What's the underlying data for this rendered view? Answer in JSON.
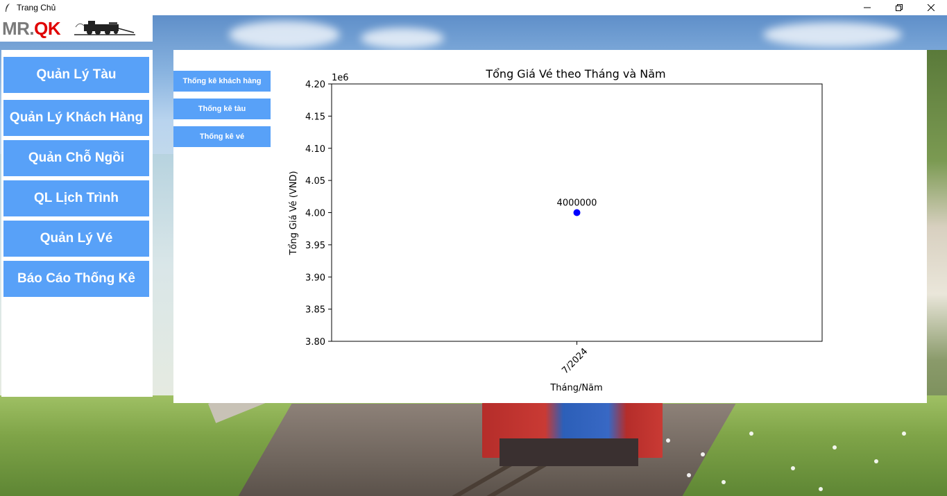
{
  "window": {
    "title": "Trang Chủ",
    "controls": [
      "minimize-icon",
      "restore-icon",
      "close-icon"
    ]
  },
  "logo": {
    "mr": "MR.",
    "qk": "QK",
    "image": "train-logo"
  },
  "sidebar": {
    "items": [
      {
        "label": "Quản Lý Tàu"
      },
      {
        "label": "Quản Lý Khách Hàng"
      },
      {
        "label": "Quản Chỗ Ngồi"
      },
      {
        "label": "QL Lịch Trình"
      },
      {
        "label": "Quản Lý Vé"
      },
      {
        "label": "Báo Cáo Thống Kê"
      }
    ],
    "button_color": "#58a1f8"
  },
  "report_tabs": [
    {
      "label": "Thống kê khách hàng"
    },
    {
      "label": "Thống kê tàu"
    },
    {
      "label": "Thống kê vé"
    }
  ],
  "chart_data": {
    "type": "scatter",
    "title": "Tổng Giá Vé theo Tháng và Năm",
    "xlabel": "Tháng/Năm",
    "ylabel": "Tổng Giá Vé (VND)",
    "offset_label": "1e6",
    "categories": [
      "7/2024"
    ],
    "values": [
      4000000
    ],
    "data_labels": [
      "4000000"
    ],
    "ylim": [
      3800000,
      4200000
    ],
    "yticks": [
      3800000,
      3850000,
      3900000,
      3950000,
      4000000,
      4050000,
      4100000,
      4150000,
      4200000
    ],
    "ytick_labels": [
      "3.80",
      "3.85",
      "3.90",
      "3.95",
      "4.00",
      "4.05",
      "4.10",
      "4.15",
      "4.20"
    ],
    "color": "#0000ff",
    "grid": false
  }
}
